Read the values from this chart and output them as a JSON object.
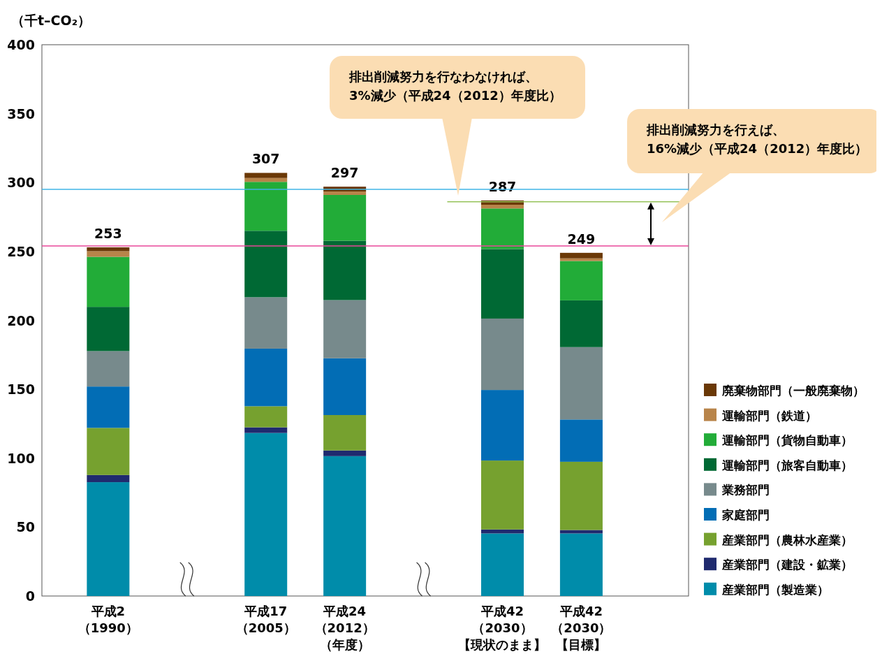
{
  "chart_data": {
    "type": "bar",
    "stacked": true,
    "ylabel": "（千t–CO₂）",
    "categories": [
      "平成2\n（1990）",
      null,
      "平成17\n（2005）",
      "平成24\n（2012）（年度）",
      null,
      "平成42\n（2030）【現状のまま】",
      "平成42\n（2030）【目標】",
      null
    ],
    "series": [
      {
        "name": "産業部門（製造業）",
        "color": "#008caa",
        "values": [
          82.6,
          null,
          118.3,
          101.5,
          null,
          45.4,
          45.4,
          null
        ]
      },
      {
        "name": "産業部門（建設・鉱業）",
        "color": "#1f2a6e",
        "values": [
          5.2,
          null,
          4.1,
          4.1,
          null,
          2.9,
          2.5,
          null
        ]
      },
      {
        "name": "産業部門（農林水産業）",
        "color": "#76a12f",
        "values": [
          34.2,
          null,
          15.3,
          25.7,
          null,
          50.0,
          49.5,
          null
        ]
      },
      {
        "name": "家庭部門",
        "color": "#026db5",
        "values": [
          30.0,
          null,
          41.8,
          41.2,
          null,
          51.2,
          30.7,
          null
        ]
      },
      {
        "name": "業務部門",
        "color": "#778a8c",
        "values": [
          25.7,
          null,
          37.3,
          42.2,
          null,
          51.8,
          52.5,
          null
        ]
      },
      {
        "name": "運輸部門（旅客自動車）",
        "color": "#006934",
        "values": [
          32.1,
          null,
          48.2,
          43.1,
          null,
          50.4,
          33.9,
          null
        ]
      },
      {
        "name": "運輸部門（貨物自動車）",
        "color": "#22ac38",
        "values": [
          36.3,
          null,
          35.5,
          33.2,
          null,
          29.5,
          28.6,
          null
        ]
      },
      {
        "name": "運輸部門（鉄道）",
        "color": "#b8844a",
        "values": [
          4.1,
          null,
          2.8,
          2.5,
          null,
          2.7,
          1.9,
          null
        ]
      },
      {
        "name": "廃棄物部門（一般廃棄物）",
        "color": "#6a3806",
        "values": [
          2.8,
          null,
          3.7,
          3.5,
          null,
          3.1,
          4.0,
          null
        ]
      }
    ],
    "totals": [
      "253",
      null,
      "307",
      "297",
      null,
      "287",
      "249",
      null
    ],
    "ylim": [
      0,
      400
    ],
    "yticks": [
      0,
      50,
      100,
      150,
      200,
      250,
      300,
      350,
      400
    ],
    "ref_lines": [
      {
        "axis": "y",
        "value": 254,
        "color": "#e9479a"
      },
      {
        "axis": "y",
        "value": 295,
        "color": "#3fb5e6"
      },
      {
        "axis": "y",
        "value": 286,
        "color": "#96c35a"
      }
    ],
    "annotations": [
      "排出削減努力を行なわなければ、\n3%減少（平成24（2012）年度比）",
      "排出削減努力を行えば、\n16%減少（平成24（2012）年度比）"
    ],
    "grid": false,
    "legend": "right"
  }
}
